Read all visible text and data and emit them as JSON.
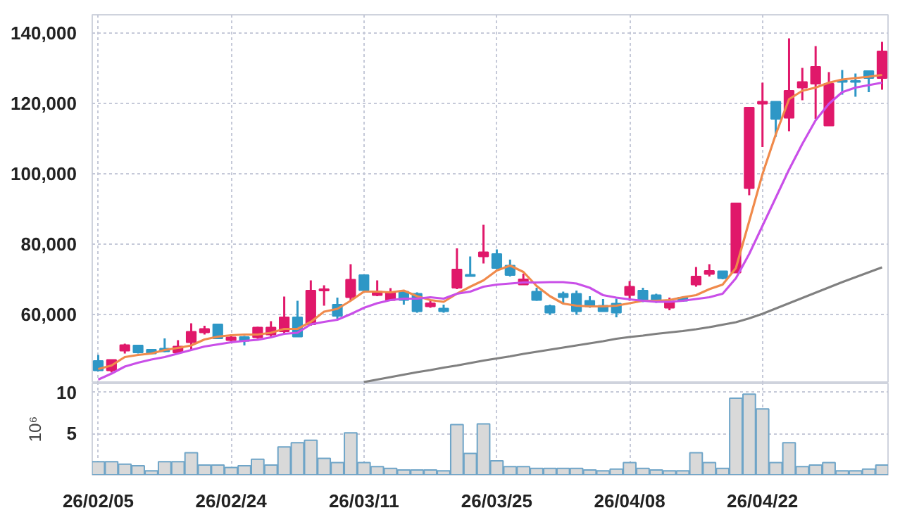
{
  "chart_data": [
    {
      "type": "candlestick",
      "categories": [
        null,
        null,
        null,
        null,
        null,
        null,
        null,
        null,
        null,
        null,
        null,
        null,
        null,
        null,
        null,
        null,
        null,
        null,
        null,
        null,
        null,
        null,
        null,
        null,
        null,
        null,
        null,
        null,
        null,
        null,
        null,
        null,
        null,
        null,
        null,
        null,
        null,
        null,
        null,
        null,
        null,
        null,
        null,
        null,
        null,
        null,
        null,
        null,
        null,
        null,
        null,
        null,
        null,
        null,
        null,
        null,
        null,
        null,
        null,
        null
      ],
      "ohlc": [
        [
          46800,
          48500,
          43900,
          44100
        ],
        [
          44100,
          47100,
          43500,
          47100
        ],
        [
          49700,
          51700,
          48900,
          51300
        ],
        [
          51200,
          51400,
          48900,
          49200
        ],
        [
          50000,
          50100,
          48700,
          48900
        ],
        [
          50300,
          53200,
          49300,
          49500
        ],
        [
          49200,
          52700,
          48900,
          50900
        ],
        [
          52100,
          57500,
          49900,
          55100
        ],
        [
          54900,
          56800,
          54300,
          55900
        ],
        [
          57200,
          57200,
          53000,
          53200
        ],
        [
          52700,
          54400,
          52400,
          53500
        ],
        [
          53600,
          53900,
          51200,
          52500
        ],
        [
          53500,
          56500,
          53100,
          56300
        ],
        [
          54300,
          58100,
          53600,
          56300
        ],
        [
          55200,
          65100,
          54300,
          59200
        ],
        [
          59200,
          63900,
          53700,
          53700
        ],
        [
          57200,
          69700,
          56800,
          66800
        ],
        [
          66800,
          68300,
          62500,
          67200
        ],
        [
          62800,
          64800,
          58800,
          59600
        ],
        [
          64900,
          74300,
          63900,
          69900
        ],
        [
          71200,
          71200,
          66300,
          66900
        ],
        [
          65500,
          69700,
          65200,
          66500
        ],
        [
          64100,
          67500,
          63900,
          66300
        ],
        [
          66500,
          66500,
          62800,
          64100
        ],
        [
          65900,
          66300,
          60500,
          60900
        ],
        [
          62300,
          63900,
          61900,
          63200
        ],
        [
          61700,
          62800,
          60500,
          60900
        ],
        [
          67600,
          78800,
          67200,
          72800
        ],
        [
          71300,
          76500,
          70900,
          70900
        ],
        [
          76500,
          85500,
          74500,
          77700
        ],
        [
          77200,
          78500,
          72900,
          73200
        ],
        [
          73900,
          75600,
          70800,
          71200
        ],
        [
          68500,
          71600,
          68500,
          70000
        ],
        [
          66500,
          67600,
          63900,
          64100
        ],
        [
          62400,
          62800,
          59900,
          60500
        ],
        [
          65900,
          66500,
          63200,
          64900
        ],
        [
          65900,
          66800,
          59900,
          60900
        ],
        [
          63900,
          65200,
          61900,
          62300
        ],
        [
          62500,
          64400,
          60900,
          60900
        ],
        [
          63100,
          64500,
          59200,
          60500
        ],
        [
          65500,
          69500,
          63900,
          67900
        ],
        [
          66800,
          67600,
          63500,
          63900
        ],
        [
          65500,
          65900,
          63300,
          63600
        ],
        [
          61900,
          64800,
          61200,
          63500
        ],
        [
          64800,
          65100,
          63600,
          63900
        ],
        [
          68500,
          73500,
          67900,
          70800
        ],
        [
          71500,
          74300,
          70800,
          72400
        ],
        [
          72300,
          72300,
          70000,
          70300
        ],
        [
          71900,
          91600,
          71900,
          91600
        ],
        [
          95900,
          118800,
          93900,
          118800
        ],
        [
          119900,
          125900,
          107600,
          120500
        ],
        [
          120500,
          120500,
          110500,
          115600
        ],
        [
          115900,
          138500,
          112100,
          123600
        ],
        [
          124500,
          130100,
          120900,
          126100
        ],
        [
          125600,
          136300,
          115600,
          130400
        ],
        [
          113700,
          128900,
          113700,
          125600
        ],
        [
          126500,
          129500,
          122500,
          126100
        ],
        [
          126400,
          128500,
          121900,
          126100
        ],
        [
          129200,
          129200,
          123200,
          127200
        ],
        [
          127200,
          137500,
          123900,
          134800
        ]
      ],
      "colors": [
        "#2e97c6",
        "#e0186a",
        "#e0186a",
        "#2e97c6",
        "#2e97c6",
        "#2e97c6",
        "#e0186a",
        "#e0186a",
        "#e0186a",
        "#2e97c6",
        "#e0186a",
        "#2e97c6",
        "#e0186a",
        "#e0186a",
        "#e0186a",
        "#2e97c6",
        "#e0186a",
        "#e0186a",
        "#2e97c6",
        "#e0186a",
        "#2e97c6",
        "#e0186a",
        "#e0186a",
        "#2e97c6",
        "#2e97c6",
        "#e0186a",
        "#2e97c6",
        "#e0186a",
        "#2e97c6",
        "#e0186a",
        "#2e97c6",
        "#2e97c6",
        "#e0186a",
        "#2e97c6",
        "#2e97c6",
        "#2e97c6",
        "#2e97c6",
        "#2e97c6",
        "#2e97c6",
        "#2e97c6",
        "#e0186a",
        "#2e97c6",
        "#2e97c6",
        "#e0186a",
        "#2e97c6",
        "#e0186a",
        "#e0186a",
        "#2e97c6",
        "#e0186a",
        "#e0186a",
        "#e0186a",
        "#2e97c6",
        "#e0186a",
        "#e0186a",
        "#e0186a",
        "#e0186a",
        "#2e97c6",
        "#2e97c6",
        "#2e97c6",
        "#e0186a"
      ],
      "series": [
        {
          "type": "line",
          "color": "#f08a4b",
          "values": [
            44500,
            45500,
            47900,
            48500,
            48900,
            49900,
            50500,
            51200,
            52900,
            53700,
            54100,
            54300,
            54300,
            54800,
            55900,
            55900,
            57900,
            60800,
            61600,
            63900,
            66500,
            66500,
            66300,
            66800,
            65200,
            64100,
            63600,
            65900,
            67900,
            69700,
            72500,
            73900,
            72100,
            68100,
            65200,
            63100,
            62500,
            62300,
            62300,
            62500,
            63200,
            63900,
            63900,
            64100,
            64900,
            65500,
            67200,
            68500,
            73200,
            86500,
            99900,
            111200,
            121200,
            123600,
            124500,
            125900,
            126800,
            127200,
            127600,
            128100
          ]
        },
        {
          "type": "line",
          "color": "#c94fe8",
          "values": [
            41500,
            43200,
            45200,
            46300,
            47200,
            47900,
            48900,
            49900,
            50900,
            51500,
            52100,
            52500,
            52800,
            53500,
            54500,
            54800,
            57200,
            57900,
            58500,
            60100,
            61900,
            63200,
            64100,
            64500,
            64500,
            64900,
            64500,
            65900,
            66500,
            67900,
            68500,
            68800,
            69100,
            69100,
            69200,
            69200,
            68800,
            67600,
            65500,
            64800,
            64300,
            63900,
            63600,
            63600,
            63900,
            64400,
            64900,
            65900,
            70300,
            77200,
            85200,
            93200,
            101200,
            108500,
            115200,
            119900,
            123200,
            124500,
            125200,
            125900
          ]
        },
        {
          "type": "line",
          "color": "#808080",
          "values": [
            null,
            null,
            null,
            null,
            null,
            null,
            null,
            null,
            null,
            null,
            null,
            null,
            null,
            null,
            null,
            null,
            null,
            null,
            null,
            null,
            40800,
            41500,
            42200,
            42900,
            43600,
            44200,
            44900,
            45500,
            46200,
            46900,
            47500,
            48100,
            48800,
            49400,
            50000,
            50600,
            51200,
            51800,
            52400,
            53100,
            53600,
            54000,
            54500,
            54900,
            55300,
            55800,
            56400,
            57100,
            57800,
            58900,
            60200,
            61700,
            63200,
            64700,
            66200,
            67700,
            69200,
            70600,
            72000,
            73400
          ]
        }
      ],
      "ylim": [
        40400,
        145200
      ],
      "yticks": [
        {
          "value": 60000,
          "label": "60,000"
        },
        {
          "value": 80000,
          "label": "80,000"
        },
        {
          "value": 100000,
          "label": "100,000"
        },
        {
          "value": 120000,
          "label": "120,000"
        },
        {
          "value": 140000,
          "label": "140,000"
        }
      ],
      "grid": true,
      "tick_labels": "y"
    },
    {
      "type": "bar",
      "categories": [
        "26/02/05",
        null,
        null,
        null,
        null,
        null,
        null,
        null,
        null,
        null,
        "26/02/24",
        null,
        null,
        null,
        null,
        null,
        null,
        null,
        null,
        null,
        "26/03/11",
        null,
        null,
        null,
        null,
        null,
        null,
        null,
        null,
        null,
        "26/03/25",
        null,
        null,
        null,
        null,
        null,
        null,
        null,
        null,
        null,
        "26/04/08",
        null,
        null,
        null,
        null,
        null,
        null,
        null,
        null,
        null,
        "26/04/22",
        null,
        null,
        null,
        null,
        null,
        null,
        null,
        null,
        null
      ],
      "values": [
        1.6,
        1.6,
        1.3,
        1.1,
        0.5,
        1.6,
        1.6,
        2.7,
        1.2,
        1.2,
        0.9,
        1.1,
        1.9,
        1.2,
        3.4,
        3.9,
        4.2,
        2.0,
        1.5,
        5.1,
        1.5,
        1.0,
        0.8,
        0.6,
        0.6,
        0.6,
        0.5,
        6.1,
        2.6,
        6.2,
        1.7,
        1.0,
        1.0,
        0.8,
        0.8,
        0.8,
        0.8,
        0.6,
        0.5,
        0.7,
        1.5,
        0.8,
        0.6,
        0.5,
        0.5,
        2.7,
        1.5,
        0.8,
        9.3,
        9.8,
        8.0,
        1.5,
        3.9,
        1.0,
        1.2,
        1.5,
        0.5,
        0.5,
        0.7,
        1.2
      ],
      "color": "#d9d9d9",
      "ylabel": "10⁶",
      "ylim": [
        0,
        11.1
      ],
      "yticks": [
        5,
        10
      ],
      "grid": true
    }
  ]
}
